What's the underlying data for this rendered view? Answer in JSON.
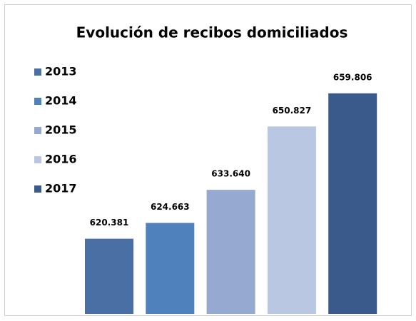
{
  "chart_data": {
    "type": "bar",
    "title": "Evolución de recibos domiciliados",
    "categories": [
      "2013",
      "2014",
      "2015",
      "2016",
      "2017"
    ],
    "values": [
      620381,
      624663,
      633640,
      650827,
      659806
    ],
    "value_labels": [
      "620.381",
      "624.663",
      "633.640",
      "650.827",
      "659.806"
    ],
    "colors": [
      "#4a6fa5",
      "#4f81bd",
      "#95a9d1",
      "#b9c7e2",
      "#3a5a8c"
    ],
    "ylim": [
      600000,
      665000
    ]
  }
}
